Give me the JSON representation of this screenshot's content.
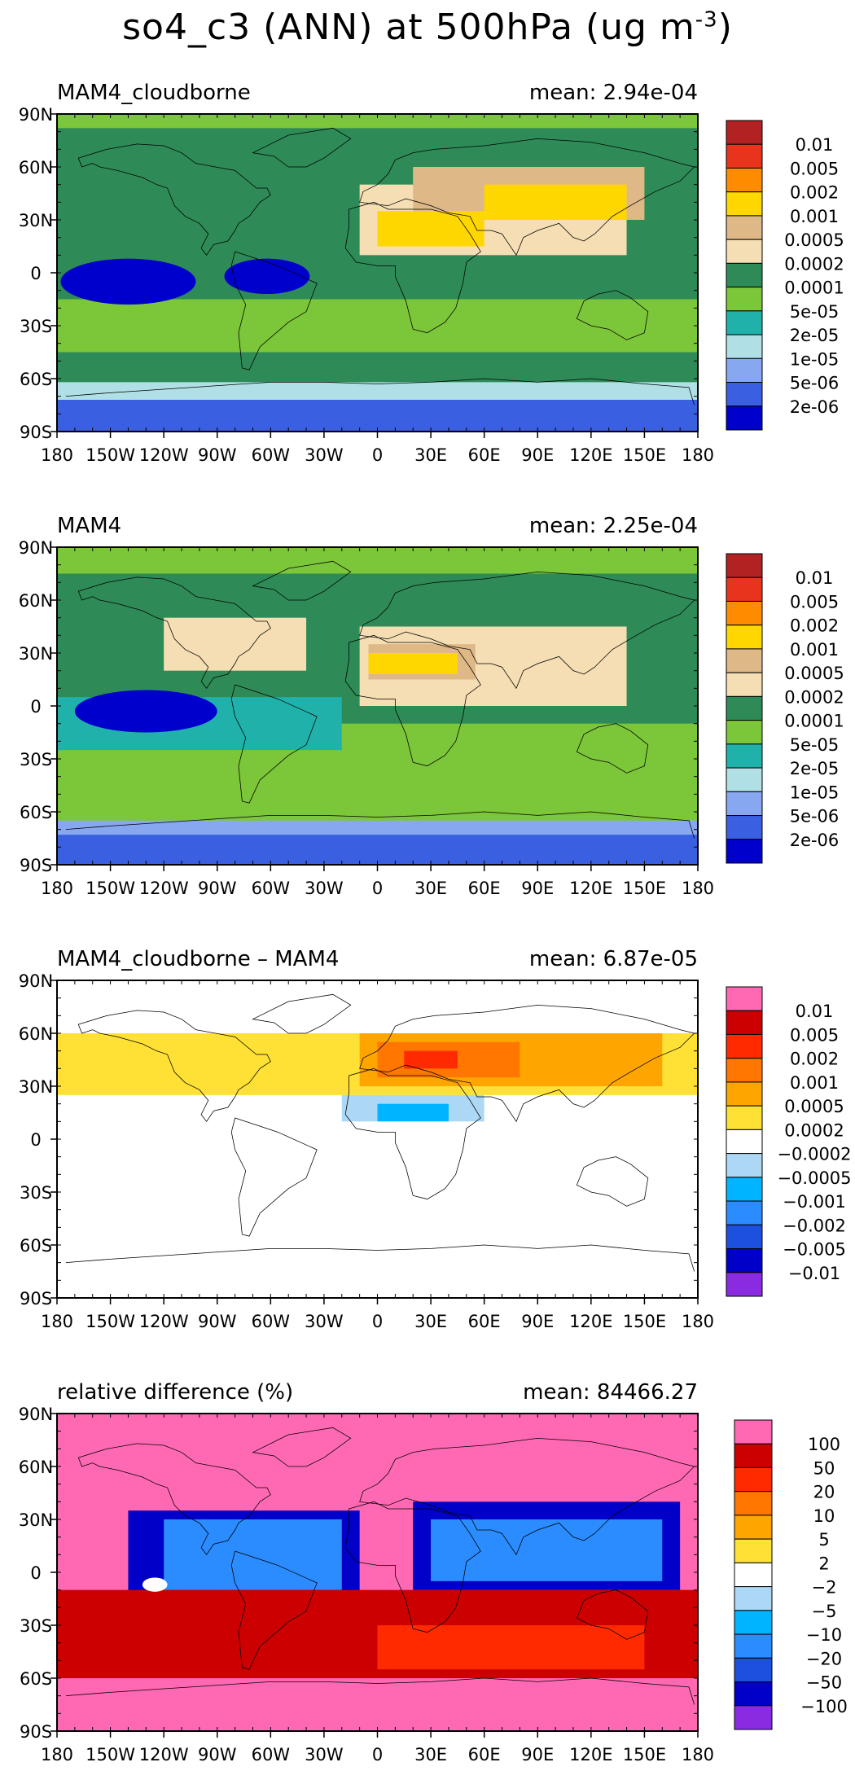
{
  "figure": {
    "title_prefix": "so4_c3 (ANN) at 500hPa (ug m",
    "title_exponent": "-3",
    "title_suffix": ")"
  },
  "axes": {
    "lat_labels": [
      "90N",
      "60N",
      "30N",
      "0",
      "30S",
      "60S",
      "90S"
    ],
    "lon_labels": [
      "180",
      "150W",
      "120W",
      "90W",
      "60W",
      "30W",
      "0",
      "30E",
      "60E",
      "90E",
      "120E",
      "150E",
      "180"
    ]
  },
  "panels": [
    {
      "id": "mam4-cloudborne",
      "title": "MAM4_cloudborne",
      "mean_text": "mean: 2.94e-04",
      "colorbar": {
        "labels": [
          "0.01",
          "0.005",
          "0.002",
          "0.001",
          "0.0005",
          "0.0002",
          "0.0001",
          "5e-05",
          "2e-05",
          "1e-05",
          "5e-06",
          "2e-06"
        ],
        "colors": [
          "#b22222",
          "#e8341c",
          "#ff8c00",
          "#ffd700",
          "#deb887",
          "#f5deb3",
          "#2e8b57",
          "#7cc639",
          "#20b2aa",
          "#b0e0e6",
          "#87a8f0",
          "#3a5fe0",
          "#0000cd"
        ]
      }
    },
    {
      "id": "mam4",
      "title": "MAM4",
      "mean_text": "mean: 2.25e-04",
      "colorbar": {
        "labels": [
          "0.01",
          "0.005",
          "0.002",
          "0.001",
          "0.0005",
          "0.0002",
          "0.0001",
          "5e-05",
          "2e-05",
          "1e-05",
          "5e-06",
          "2e-06"
        ],
        "colors": [
          "#b22222",
          "#e8341c",
          "#ff8c00",
          "#ffd700",
          "#deb887",
          "#f5deb3",
          "#2e8b57",
          "#7cc639",
          "#20b2aa",
          "#b0e0e6",
          "#87a8f0",
          "#3a5fe0",
          "#0000cd"
        ]
      }
    },
    {
      "id": "difference",
      "title": "MAM4_cloudborne – MAM4",
      "mean_text": "mean: 6.87e-05",
      "colorbar": {
        "labels": [
          "0.01",
          "0.005",
          "0.002",
          "0.001",
          "0.0005",
          "0.0002",
          "−0.0002",
          "−0.0005",
          "−0.001",
          "−0.002",
          "−0.005",
          "−0.01"
        ],
        "colors": [
          "#ff69b4",
          "#cc0000",
          "#ff2a00",
          "#ff7700",
          "#ffa500",
          "#ffe135",
          "#ffffff",
          "#add8f5",
          "#00b4ff",
          "#2a8cff",
          "#1e50e0",
          "#0000c8",
          "#8a2be2"
        ]
      }
    },
    {
      "id": "relative-difference",
      "title": "relative difference (%)",
      "mean_text": "mean: 84466.27",
      "colorbar": {
        "labels": [
          "100",
          "50",
          "20",
          "10",
          "5",
          "2",
          "−2",
          "−5",
          "−10",
          "−20",
          "−50",
          "−100"
        ],
        "colors": [
          "#ff69b4",
          "#cc0000",
          "#ff2a00",
          "#ff7700",
          "#ffa500",
          "#ffe135",
          "#ffffff",
          "#add8f5",
          "#00b4ff",
          "#2a8cff",
          "#1e50e0",
          "#0000c8",
          "#8a2be2"
        ]
      }
    }
  ]
}
